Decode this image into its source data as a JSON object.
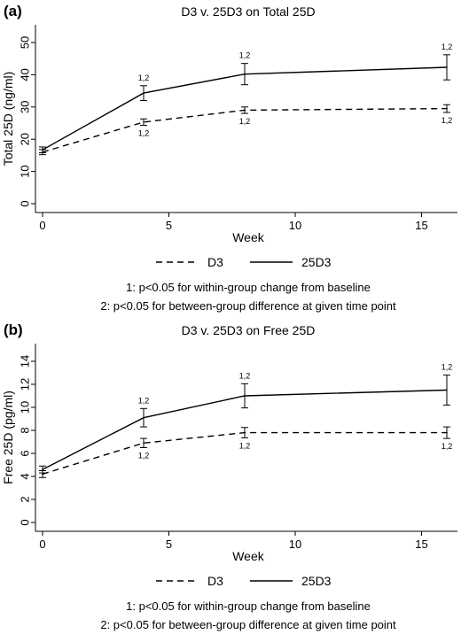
{
  "chart_data": [
    {
      "type": "line",
      "panel_label": "(a)",
      "title": "D3 v. 25D3 on Total 25D",
      "xlabel": "Week",
      "ylabel": "Total 25D (ng/ml)",
      "xlim": [
        0,
        16
      ],
      "ylim": [
        0,
        50
      ],
      "xticks": [
        0,
        5,
        10,
        15
      ],
      "yticks": [
        0,
        10,
        20,
        30,
        40,
        50
      ],
      "x": [
        0,
        4,
        8,
        16
      ],
      "grid": false,
      "legend_position": "bottom",
      "series": [
        {
          "name": "D3",
          "style": "dashed",
          "values": [
            16.0,
            25.3,
            29.0,
            29.5
          ],
          "error": [
            0.8,
            1.0,
            1.0,
            1.2
          ],
          "annotations": [
            "",
            "1,2",
            "1,2",
            "1,2"
          ],
          "annotation_side": "below"
        },
        {
          "name": "25D3",
          "style": "solid",
          "values": [
            16.7,
            34.3,
            40.2,
            42.3
          ],
          "error": [
            0.9,
            2.3,
            3.3,
            3.9
          ],
          "annotations": [
            "",
            "1,2",
            "1,2",
            "1,2"
          ],
          "annotation_side": "above"
        }
      ],
      "footnotes": [
        "1: p<0.05 for within-group change from baseline",
        "2: p<0.05 for between-group difference at given time point"
      ]
    },
    {
      "type": "line",
      "panel_label": "(b)",
      "title": "D3 v. 25D3 on Free 25D",
      "xlabel": "Week",
      "ylabel": "Free 25D (pg/ml)",
      "xlim": [
        0,
        16
      ],
      "ylim": [
        0,
        14
      ],
      "xticks": [
        0,
        5,
        10,
        15
      ],
      "yticks": [
        0,
        2,
        4,
        6,
        8,
        10,
        12,
        14
      ],
      "x": [
        0,
        4,
        8,
        16
      ],
      "grid": false,
      "legend_position": "bottom",
      "series": [
        {
          "name": "D3",
          "style": "dashed",
          "values": [
            4.2,
            6.9,
            7.8,
            7.8
          ],
          "error": [
            0.3,
            0.4,
            0.45,
            0.5
          ],
          "annotations": [
            "",
            "1,2",
            "1,2",
            "1,2"
          ],
          "annotation_side": "below"
        },
        {
          "name": "25D3",
          "style": "solid",
          "values": [
            4.6,
            9.1,
            11.0,
            11.5
          ],
          "error": [
            0.3,
            0.8,
            1.05,
            1.3
          ],
          "annotations": [
            "",
            "1,2",
            "1,2",
            "1,2"
          ],
          "annotation_side": "above"
        }
      ],
      "footnotes": [
        "1: p<0.05 for within-group change from baseline",
        "2: p<0.05 for between-group difference at given time point"
      ]
    }
  ]
}
